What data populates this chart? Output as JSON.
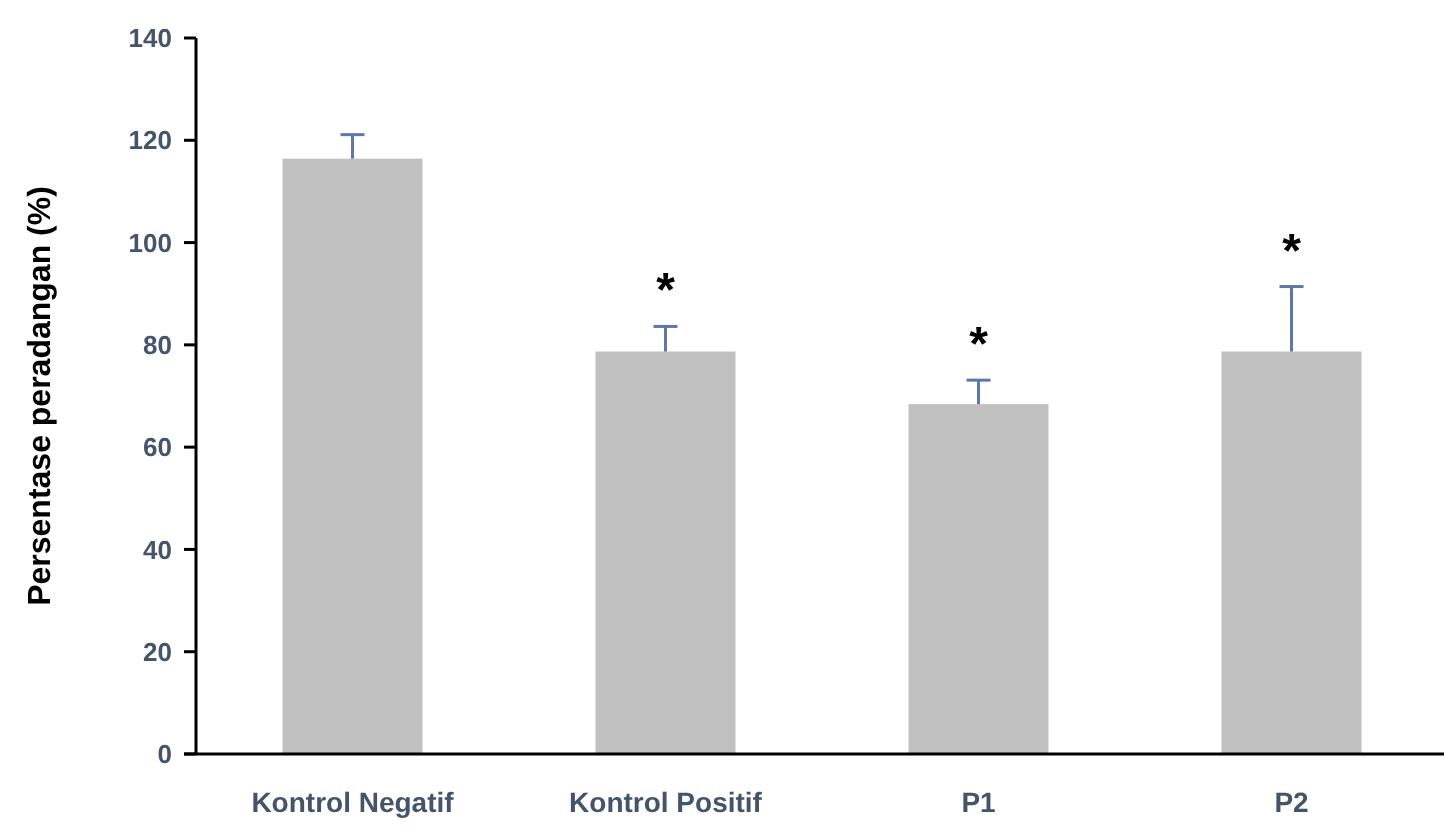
{
  "chart_data": {
    "type": "bar",
    "ylabel": "Persentase peradangan (%)",
    "categories": [
      "Kontrol Negatif",
      "Kontrol Positif",
      "P1",
      "P2"
    ],
    "values": [
      116.4,
      78.7,
      68.4,
      78.7
    ],
    "color": "#c0c0c0",
    "errors": [
      [
        116.4,
        121.1
      ],
      [
        78.7,
        83.6
      ],
      [
        68.4,
        73.1
      ],
      [
        78.7,
        91.4
      ]
    ],
    "ylim": [
      0,
      140
    ],
    "yticks": [
      0,
      20,
      40,
      60,
      80,
      100,
      120,
      140
    ],
    "grid": false,
    "annotations": [
      {
        "text": "*",
        "x": "Kontrol Positif",
        "y": 83.6
      },
      {
        "text": "*",
        "x": "P1",
        "y": 73.1
      },
      {
        "text": "*",
        "x": "P2",
        "y": 91.4
      }
    ]
  }
}
